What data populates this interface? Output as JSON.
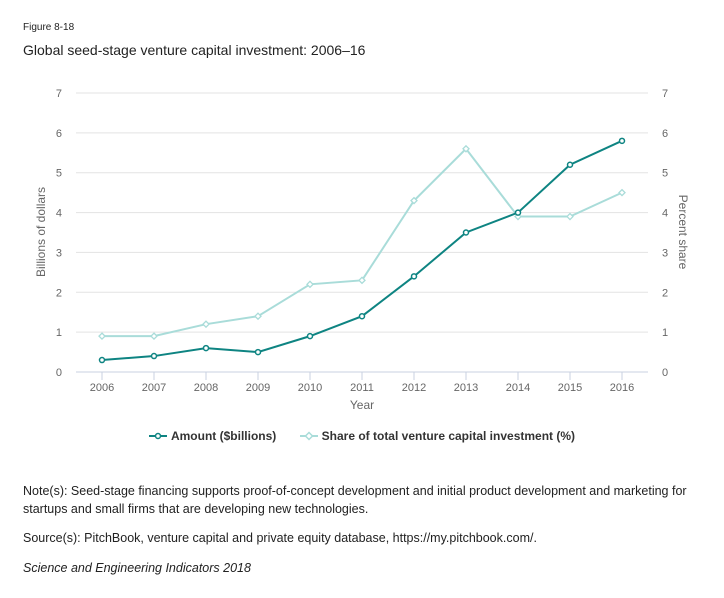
{
  "figure_label": "Figure 8-18",
  "title": "Global seed-stage venture capital investment: 2006–16",
  "chart_data": {
    "type": "line",
    "categories": [
      "2006",
      "2007",
      "2008",
      "2009",
      "2010",
      "2011",
      "2012",
      "2013",
      "2014",
      "2015",
      "2016"
    ],
    "xlabel": "Year",
    "ylabel": "Billions of dollars",
    "y2label": "Percent share",
    "ylim": [
      0,
      7
    ],
    "y2lim": [
      0,
      7
    ],
    "yticks": [
      "0",
      "1",
      "2",
      "3",
      "4",
      "5",
      "6",
      "7"
    ],
    "grid": true,
    "legend_position": "bottom",
    "series": [
      {
        "name": "Amount ($billions)",
        "axis": "left",
        "color": "#0e8482",
        "marker": "circle",
        "values": [
          0.3,
          0.4,
          0.6,
          0.5,
          0.9,
          1.4,
          2.4,
          3.5,
          4.0,
          5.2,
          5.8
        ]
      },
      {
        "name": "Share of total venture capital investment (%)",
        "axis": "right",
        "color": "#a9dcd9",
        "marker": "diamond",
        "values": [
          0.9,
          0.9,
          1.2,
          1.4,
          2.2,
          2.3,
          4.3,
          5.6,
          3.9,
          3.9,
          4.5
        ]
      }
    ]
  },
  "note": "Note(s): Seed-stage financing supports proof-of-concept development and initial product development and marketing for startups and small firms that are developing new technologies.",
  "source": "Source(s): PitchBook, venture capital and private equity database, https://my.pitchbook.com/.",
  "publication": "Science and Engineering Indicators 2018"
}
